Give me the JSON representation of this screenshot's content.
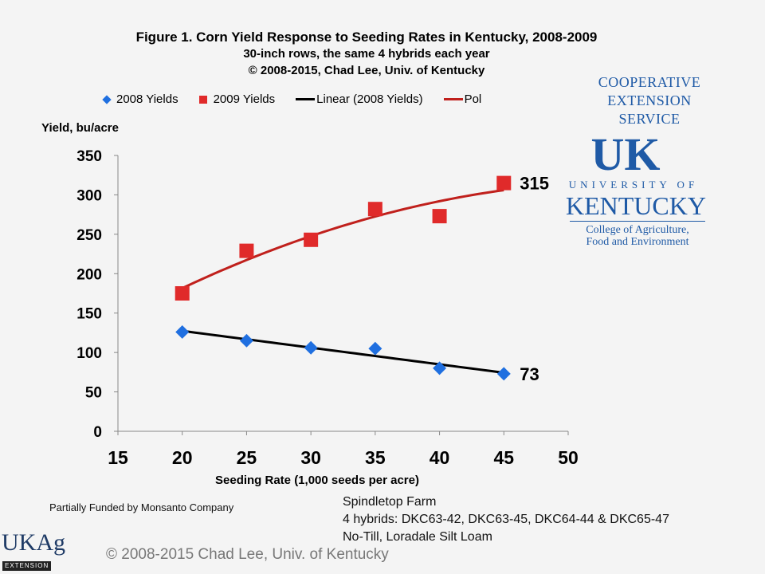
{
  "chart_data": {
    "type": "scatter",
    "title": "Figure 1. Corn Yield Response to Seeding Rates in Kentucky, 2008-2009",
    "subtitle": [
      "30-inch rows, the same 4 hybrids each year",
      "© 2008-2015, Chad Lee, Univ. of Kentucky"
    ],
    "xlabel": "Seeding Rate (1,000 seeds per acre)",
    "ylabel": "Yield, bu/acre",
    "xlim": [
      15,
      50
    ],
    "ylim": [
      0,
      350
    ],
    "xticks": [
      "15",
      "20",
      "25",
      "30",
      "35",
      "40",
      "45",
      "50"
    ],
    "yticks": [
      "0",
      "50",
      "100",
      "150",
      "200",
      "250",
      "300",
      "350"
    ],
    "grid": false,
    "legend_position": "top",
    "x": [
      20,
      25,
      30,
      35,
      40,
      45
    ],
    "series": [
      {
        "name": "2008 Yields",
        "marker": "diamond",
        "color": "#1f6fe0",
        "values": [
          126,
          115,
          106,
          105,
          80,
          73
        ]
      },
      {
        "name": "2009 Yields",
        "marker": "square",
        "color": "#e02a2a",
        "values": [
          175,
          229,
          243,
          282,
          273,
          315
        ]
      }
    ],
    "trendlines": [
      {
        "name": "Linear (2008 Yields)",
        "of": "2008 Yields",
        "kind": "linear",
        "color": "#000000"
      },
      {
        "name": "Pol",
        "of": "2009 Yields",
        "kind": "polynomial",
        "color": "#c0201c"
      }
    ],
    "annotations": [
      {
        "text": "315",
        "x": 45,
        "y": 315
      },
      {
        "text": "73",
        "x": 45,
        "y": 73
      }
    ]
  },
  "notes": {
    "funded": "Partially Funded by Monsanto Company",
    "farm": [
      "Spindletop Farm",
      "4 hybrids: DKC63-42, DKC63-45, DKC64-44 & DKC65-47",
      "No-Till, Loradale Silt Loam"
    ],
    "copyright": "© 2008-2015 Chad Lee, Univ. of Kentucky"
  },
  "logos": {
    "uk": {
      "line1": "COOPERATIVE",
      "line2": "EXTENSION",
      "line3": "SERVICE",
      "mark": "UK",
      "univ": "UNIVERSITY OF",
      "ky": "KENTUCKY",
      "college1": "College of Agriculture,",
      "college2": "Food and Environment"
    },
    "ukag": {
      "mark": "UKAg",
      "sub": "EXTENSION"
    }
  }
}
